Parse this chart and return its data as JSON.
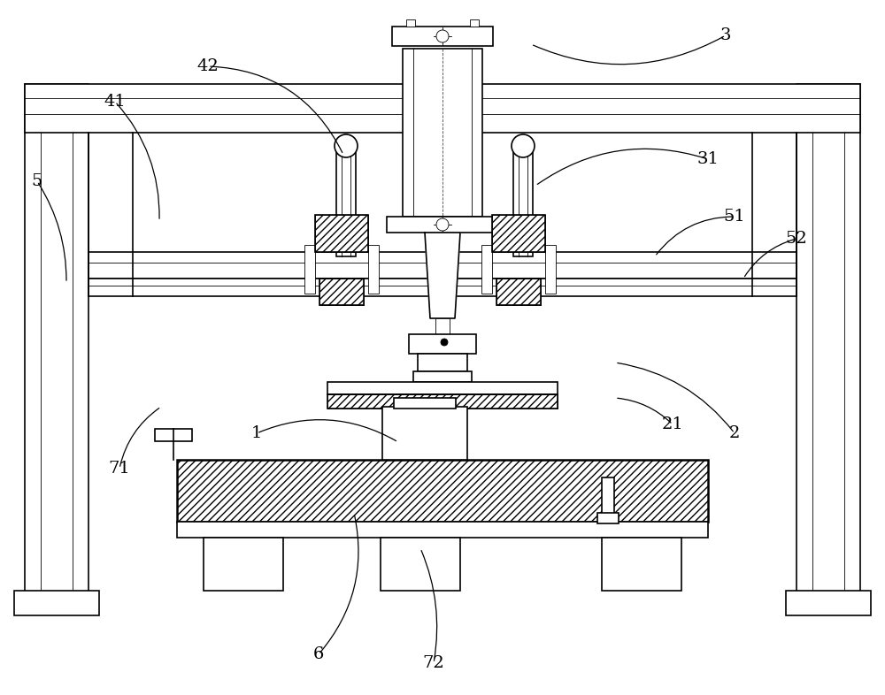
{
  "bg_color": "#ffffff",
  "fig_width": 10.0,
  "fig_height": 7.86,
  "lw_main": 1.2,
  "lw_thin": 0.6,
  "lw_thick": 1.8
}
